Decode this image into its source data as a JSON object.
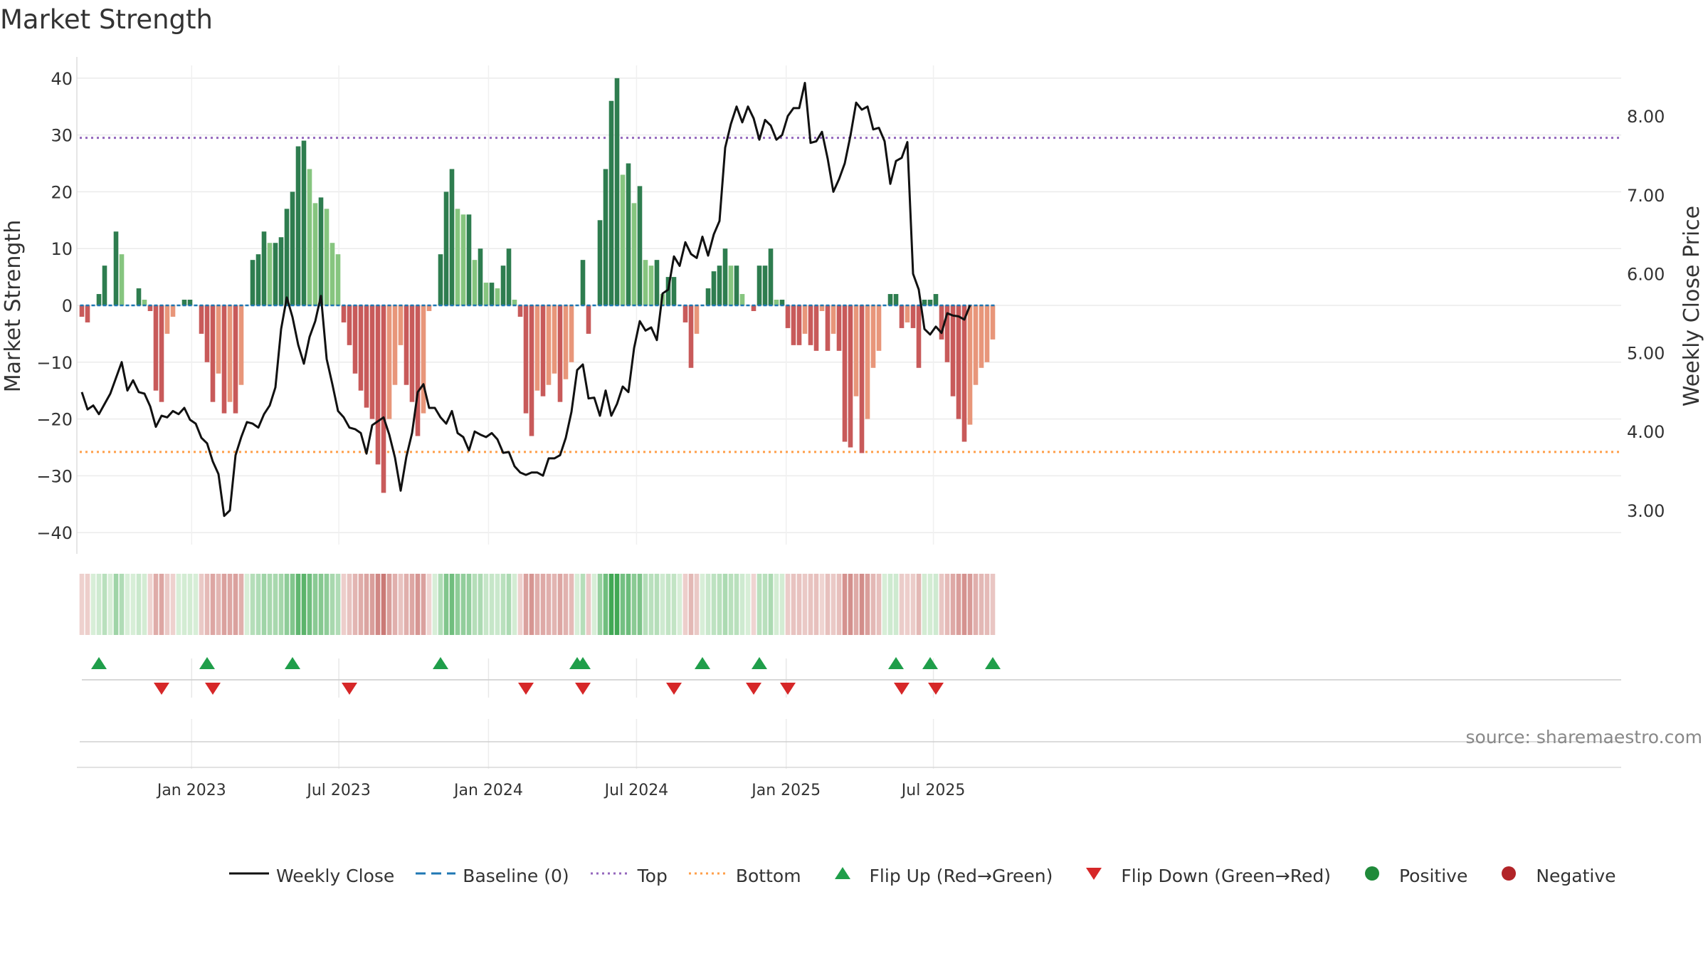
{
  "title": "Market Strength",
  "source": "source: sharemaestro.com",
  "chart_data": {
    "type": "bar",
    "left_axis": {
      "label": "Market Strength",
      "ylim": [
        -42,
        42
      ],
      "ticks": [
        40,
        30,
        20,
        10,
        0,
        -10,
        -20,
        -30,
        -40
      ],
      "tick_labels": [
        "40",
        "30",
        "20",
        "10",
        "0",
        "−10",
        "−20",
        "−30",
        "−40"
      ]
    },
    "right_axis": {
      "label": "Weekly Close Price",
      "ylim": [
        2.3,
        8.6
      ],
      "ticks": [
        8.0,
        7.0,
        6.0,
        5.0,
        4.0,
        3.0
      ],
      "tick_labels": [
        "8.00",
        "7.00",
        "6.00",
        "5.00",
        "4.00",
        "3.00"
      ]
    },
    "x_ticks": [
      {
        "label": "Jan 2023",
        "date": "2023-01-01"
      },
      {
        "label": "Jul 2023",
        "date": "2023-07-01"
      },
      {
        "label": "Jan 2024",
        "date": "2024-01-01"
      },
      {
        "label": "Jul 2024",
        "date": "2024-07-01"
      },
      {
        "label": "Jan 2025",
        "date": "2025-01-01"
      },
      {
        "label": "Jul 2025",
        "date": "2025-07-01"
      }
    ],
    "start_date": "2022-08-19",
    "top_line": 29.5,
    "bottom_line": -25.8,
    "colors": {
      "pos_strong": "#2e7d4f",
      "pos_weak": "#86c57f",
      "neg_strong": "#c85a5a",
      "neg_weak": "#e8967a",
      "close": "#111111",
      "baseline": "#1f77b4",
      "top": "#9467bd",
      "bottom": "#ff9f4a",
      "flip_up": "#1f9e4a",
      "flip_down": "#d62728"
    },
    "strength": [
      -2,
      -3,
      0,
      2,
      7,
      0,
      13,
      9,
      0,
      0,
      3,
      1,
      -1,
      -15,
      -17,
      -5,
      -2,
      0,
      1,
      1,
      0,
      -5,
      -10,
      -17,
      -12,
      -19,
      -17,
      -19,
      -14,
      0,
      8,
      9,
      13,
      11,
      11,
      12,
      17,
      20,
      28,
      29,
      24,
      18,
      19,
      17,
      11,
      9,
      -3,
      -7,
      -12,
      -15,
      -18,
      -20,
      -28,
      -33,
      -20,
      -14,
      -7,
      -14,
      -17,
      -23,
      -19,
      -1,
      0,
      9,
      20,
      24,
      17,
      16,
      16,
      8,
      10,
      4,
      4,
      3,
      7,
      10,
      1,
      -2,
      -19,
      -23,
      -15,
      -16,
      -14,
      -12,
      -17,
      -13,
      -10,
      0,
      8,
      -5,
      0,
      15,
      24,
      36,
      40,
      23,
      25,
      18,
      21,
      8,
      7,
      8,
      2,
      5,
      5,
      0,
      -3,
      -11,
      -5,
      0,
      3,
      6,
      7,
      10,
      7,
      7,
      2,
      0,
      -1,
      7,
      7,
      10,
      1,
      1,
      -4,
      -7,
      -7,
      -5,
      -7,
      -8,
      -1,
      -8,
      -5,
      -8,
      -24,
      -25,
      -16,
      -26,
      -20,
      -11,
      -8,
      0,
      2,
      2,
      -4,
      -3,
      -4,
      -11,
      1,
      1,
      2,
      -6,
      -10,
      -16,
      -20,
      -24,
      -21,
      -14,
      -11,
      -10,
      -6
    ],
    "weekly_close": [
      4.5,
      4.28,
      4.33,
      4.22,
      4.35,
      4.48,
      4.68,
      4.88,
      4.52,
      4.65,
      4.5,
      4.48,
      4.32,
      4.06,
      4.2,
      4.18,
      4.26,
      4.22,
      4.3,
      4.15,
      4.1,
      3.92,
      3.85,
      3.62,
      3.46,
      2.93,
      3.0,
      3.7,
      3.93,
      4.12,
      4.1,
      4.05,
      4.22,
      4.33,
      4.56,
      5.3,
      5.7,
      5.45,
      5.1,
      4.86,
      5.2,
      5.4,
      5.72,
      4.92,
      4.6,
      4.26,
      4.18,
      4.05,
      4.03,
      3.98,
      3.72,
      4.08,
      4.13,
      4.18,
      3.96,
      3.67,
      3.25,
      3.68,
      3.98,
      4.5,
      4.6,
      4.3,
      4.3,
      4.18,
      4.1,
      4.26,
      3.98,
      3.93,
      3.76,
      4.0,
      3.96,
      3.93,
      3.98,
      3.9,
      3.73,
      3.74,
      3.56,
      3.48,
      3.45,
      3.48,
      3.48,
      3.44,
      3.66,
      3.66,
      3.7,
      3.92,
      4.25,
      4.78,
      4.85,
      4.42,
      4.43,
      4.2,
      4.52,
      4.2,
      4.35,
      4.57,
      4.5,
      5.06,
      5.4,
      5.28,
      5.32,
      5.16,
      5.75,
      5.8,
      6.22,
      6.1,
      6.4,
      6.25,
      6.2,
      6.47,
      6.23,
      6.5,
      6.67,
      7.6,
      7.9,
      8.12,
      7.92,
      8.12,
      7.97,
      7.7,
      7.95,
      7.88,
      7.7,
      7.76,
      8.0,
      8.1,
      8.1,
      8.42,
      7.66,
      7.68,
      7.8,
      7.46,
      7.04,
      7.2,
      7.4,
      7.75,
      8.17,
      8.08,
      8.12,
      7.83,
      7.85,
      7.68,
      7.14,
      7.43,
      7.47,
      7.67,
      6.0,
      5.8,
      5.3,
      5.23,
      5.33,
      5.25,
      5.5,
      5.47,
      5.46,
      5.42,
      5.6
    ],
    "flip_up": [
      "2022-09-09",
      "2023-01-20",
      "2023-05-05",
      "2023-11-03",
      "2024-04-19",
      "2024-04-26",
      "2024-09-20",
      "2024-11-29",
      "2025-05-16",
      "2025-06-27",
      "2025-09-12"
    ],
    "flip_down": [
      "2022-11-25",
      "2023-01-27",
      "2023-07-14",
      "2024-02-16",
      "2024-04-26",
      "2024-08-16",
      "2024-11-22",
      "2025-01-03",
      "2025-05-23",
      "2025-07-04"
    ]
  },
  "legend": [
    {
      "label": "Weekly Close",
      "symbol": "solid-line"
    },
    {
      "label": "Baseline (0)",
      "symbol": "dashed-line"
    },
    {
      "label": "Top",
      "symbol": "dotted-purple"
    },
    {
      "label": "Bottom",
      "symbol": "dotted-orange"
    },
    {
      "label": "Flip Up (Red→Green)",
      "symbol": "triangle-up"
    },
    {
      "label": "Flip Down (Green→Red)",
      "symbol": "triangle-down"
    },
    {
      "label": "Positive",
      "symbol": "dot-green"
    },
    {
      "label": "Negative",
      "symbol": "dot-red"
    }
  ]
}
